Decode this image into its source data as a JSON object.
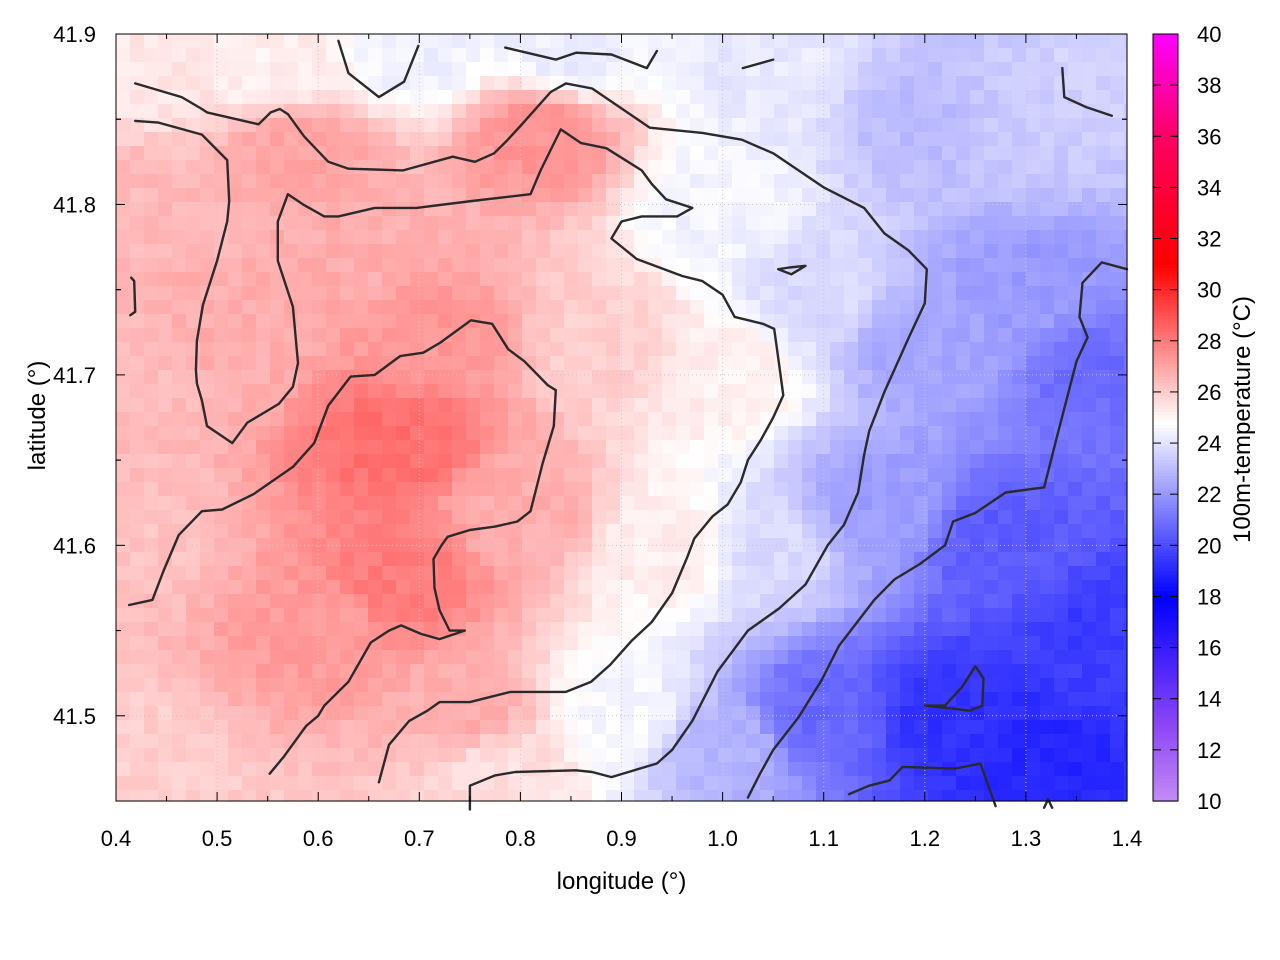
{
  "chart_data": {
    "type": "heatmap",
    "title": "",
    "xlabel": "longitude (°)",
    "ylabel": "latitude (°)",
    "xlim": [
      0.4,
      1.4
    ],
    "ylim": [
      41.45,
      41.9
    ],
    "x_ticks": [
      0.4,
      0.5,
      0.6,
      0.7,
      0.8,
      0.9,
      1.0,
      1.1,
      1.2,
      1.3,
      1.4
    ],
    "x_tick_labels": [
      "0.4",
      "0.5",
      "0.6",
      "0.7",
      "0.8",
      "0.9",
      "1.0",
      "1.1",
      "1.2",
      "1.3",
      "1.4"
    ],
    "y_ticks": [
      41.5,
      41.6,
      41.7,
      41.8,
      41.9
    ],
    "y_tick_labels": [
      "41.5",
      "41.6",
      "41.7",
      "41.8",
      "41.9"
    ],
    "grid": true,
    "colorbar": {
      "label": "100m-temperature (°C)",
      "range": [
        10,
        40
      ],
      "ticks": [
        10,
        12,
        14,
        16,
        18,
        20,
        22,
        24,
        26,
        28,
        30,
        32,
        34,
        36,
        38,
        40
      ],
      "tick_labels": [
        "10",
        "12",
        "14",
        "16",
        "18",
        "20",
        "22",
        "24",
        "26",
        "28",
        "30",
        "32",
        "34",
        "36",
        "38",
        "40"
      ],
      "palette": [
        {
          "value": 10,
          "color": "#c38cf5"
        },
        {
          "value": 13,
          "color": "#8c46f5"
        },
        {
          "value": 18,
          "color": "#0000ff"
        },
        {
          "value": 24.8,
          "color": "#ffffff"
        },
        {
          "value": 31,
          "color": "#ff0000"
        },
        {
          "value": 36,
          "color": "#ff0064"
        },
        {
          "value": 40,
          "color": "#ff00ff"
        }
      ]
    },
    "field_anchors": [
      {
        "lon": 0.42,
        "lat": 41.88,
        "temp": 25.4
      },
      {
        "lon": 0.42,
        "lat": 41.8,
        "temp": 26.5
      },
      {
        "lon": 0.42,
        "lat": 41.7,
        "temp": 26.4
      },
      {
        "lon": 0.42,
        "lat": 41.6,
        "temp": 26.3
      },
      {
        "lon": 0.42,
        "lat": 41.47,
        "temp": 26.0
      },
      {
        "lon": 0.5,
        "lat": 41.72,
        "temp": 26.8
      },
      {
        "lon": 0.55,
        "lat": 41.88,
        "temp": 25.2
      },
      {
        "lon": 0.58,
        "lat": 41.83,
        "temp": 27.0
      },
      {
        "lon": 0.6,
        "lat": 41.55,
        "temp": 27.2
      },
      {
        "lon": 0.63,
        "lat": 41.78,
        "temp": 26.8
      },
      {
        "lon": 0.68,
        "lat": 41.66,
        "temp": 28.3
      },
      {
        "lon": 0.68,
        "lat": 41.58,
        "temp": 28.0
      },
      {
        "lon": 0.72,
        "lat": 41.72,
        "temp": 27.3
      },
      {
        "lon": 0.7,
        "lat": 41.89,
        "temp": 24.4
      },
      {
        "lon": 0.75,
        "lat": 41.5,
        "temp": 26.8
      },
      {
        "lon": 0.8,
        "lat": 41.62,
        "temp": 26.8
      },
      {
        "lon": 0.82,
        "lat": 41.84,
        "temp": 27.4
      },
      {
        "lon": 0.78,
        "lat": 41.47,
        "temp": 25.6
      },
      {
        "lon": 0.88,
        "lat": 41.72,
        "temp": 26.0
      },
      {
        "lon": 0.85,
        "lat": 41.89,
        "temp": 24.3
      },
      {
        "lon": 0.9,
        "lat": 41.5,
        "temp": 24.6
      },
      {
        "lon": 0.95,
        "lat": 41.6,
        "temp": 25.2
      },
      {
        "lon": 1.0,
        "lat": 41.8,
        "temp": 24.5
      },
      {
        "lon": 1.0,
        "lat": 41.7,
        "temp": 25.2
      },
      {
        "lon": 1.0,
        "lat": 41.48,
        "temp": 22.8
      },
      {
        "lon": 1.05,
        "lat": 41.6,
        "temp": 23.8
      },
      {
        "lon": 1.05,
        "lat": 41.88,
        "temp": 24.2
      },
      {
        "lon": 1.1,
        "lat": 41.75,
        "temp": 23.8
      },
      {
        "lon": 1.1,
        "lat": 41.5,
        "temp": 20.8
      },
      {
        "lon": 1.15,
        "lat": 41.62,
        "temp": 22.2
      },
      {
        "lon": 1.2,
        "lat": 41.85,
        "temp": 23.0
      },
      {
        "lon": 1.2,
        "lat": 41.72,
        "temp": 22.4
      },
      {
        "lon": 1.22,
        "lat": 41.5,
        "temp": 19.3
      },
      {
        "lon": 1.28,
        "lat": 41.6,
        "temp": 20.4
      },
      {
        "lon": 1.3,
        "lat": 41.85,
        "temp": 23.4
      },
      {
        "lon": 1.3,
        "lat": 41.75,
        "temp": 22.1
      },
      {
        "lon": 1.3,
        "lat": 41.47,
        "temp": 19.0
      },
      {
        "lon": 1.38,
        "lat": 41.7,
        "temp": 20.9
      },
      {
        "lon": 1.38,
        "lat": 41.55,
        "temp": 19.6
      },
      {
        "lon": 1.38,
        "lat": 41.88,
        "temp": 23.6
      }
    ],
    "contours": [
      [
        [
          0.419,
          41.871
        ],
        [
          0.465,
          41.863
        ],
        [
          0.485,
          41.856
        ],
        [
          0.49,
          41.854
        ],
        [
          0.541,
          41.847
        ],
        [
          0.553,
          41.854
        ],
        [
          0.562,
          41.856
        ],
        [
          0.57,
          41.853
        ],
        [
          0.586,
          41.84
        ],
        [
          0.61,
          41.825
        ],
        [
          0.63,
          41.821
        ],
        [
          0.684,
          41.82
        ],
        [
          0.733,
          41.828
        ],
        [
          0.755,
          41.825
        ],
        [
          0.774,
          41.83
        ],
        [
          0.786,
          41.837
        ],
        [
          0.8,
          41.846
        ],
        [
          0.83,
          41.866
        ],
        [
          0.845,
          41.871
        ],
        [
          0.871,
          41.868
        ],
        [
          0.928,
          41.845
        ],
        [
          0.98,
          41.842
        ],
        [
          1.019,
          41.838
        ],
        [
          1.05,
          41.83
        ],
        [
          1.1,
          41.81
        ],
        [
          1.14,
          41.798
        ],
        [
          1.16,
          41.783
        ],
        [
          1.184,
          41.773
        ],
        [
          1.202,
          41.762
        ],
        [
          1.2,
          41.742
        ],
        [
          1.185,
          41.723
        ],
        [
          1.16,
          41.69
        ],
        [
          1.145,
          41.667
        ],
        [
          1.14,
          41.653
        ],
        [
          1.134,
          41.631
        ],
        [
          1.12,
          41.612
        ],
        [
          1.104,
          41.6
        ],
        [
          1.082,
          41.577
        ],
        [
          1.056,
          41.563
        ],
        [
          1.025,
          41.55
        ],
        [
          0.995,
          41.526
        ],
        [
          0.97,
          41.497
        ],
        [
          0.95,
          41.48
        ],
        [
          0.935,
          41.472
        ],
        [
          0.89,
          41.464
        ],
        [
          0.871,
          41.467
        ],
        [
          0.855,
          41.468
        ],
        [
          0.795,
          41.467
        ],
        [
          0.775,
          41.465
        ],
        [
          0.75,
          41.459
        ],
        [
          0.75,
          41.445
        ]
      ],
      [
        [
          0.419,
          41.849
        ],
        [
          0.442,
          41.848
        ],
        [
          0.485,
          41.841
        ],
        [
          0.51,
          41.826
        ],
        [
          0.512,
          41.802
        ],
        [
          0.51,
          41.79
        ],
        [
          0.5,
          41.767
        ],
        [
          0.486,
          41.741
        ],
        [
          0.48,
          41.72
        ],
        [
          0.479,
          41.703
        ],
        [
          0.48,
          41.695
        ],
        [
          0.485,
          41.685
        ],
        [
          0.49,
          41.67
        ],
        [
          0.505,
          41.664
        ],
        [
          0.515,
          41.66
        ],
        [
          0.53,
          41.672
        ],
        [
          0.561,
          41.683
        ],
        [
          0.575,
          41.693
        ],
        [
          0.58,
          41.707
        ],
        [
          0.575,
          41.74
        ],
        [
          0.56,
          41.767
        ],
        [
          0.56,
          41.79
        ],
        [
          0.57,
          41.806
        ],
        [
          0.585,
          41.8
        ],
        [
          0.606,
          41.793
        ],
        [
          0.62,
          41.793
        ],
        [
          0.656,
          41.798
        ],
        [
          0.697,
          41.798
        ],
        [
          0.752,
          41.802
        ],
        [
          0.81,
          41.806
        ],
        [
          0.82,
          41.82
        ],
        [
          0.84,
          41.844
        ],
        [
          0.86,
          41.836
        ],
        [
          0.885,
          41.833
        ],
        [
          0.92,
          41.82
        ],
        [
          0.93,
          41.812
        ],
        [
          0.944,
          41.803
        ],
        [
          0.97,
          41.798
        ],
        [
          0.955,
          41.793
        ],
        [
          0.92,
          41.793
        ],
        [
          0.9,
          41.79
        ],
        [
          0.89,
          41.78
        ],
        [
          0.915,
          41.768
        ],
        [
          0.96,
          41.758
        ],
        [
          0.98,
          41.755
        ],
        [
          1.0,
          41.747
        ],
        [
          1.012,
          41.734
        ],
        [
          1.04,
          41.73
        ],
        [
          1.051,
          41.727
        ],
        [
          1.055,
          41.71
        ],
        [
          1.06,
          41.688
        ],
        [
          1.05,
          41.675
        ],
        [
          1.038,
          41.662
        ],
        [
          1.025,
          41.65
        ],
        [
          1.018,
          41.637
        ],
        [
          1.005,
          41.624
        ],
        [
          0.99,
          41.617
        ],
        [
          0.972,
          41.604
        ],
        [
          0.965,
          41.593
        ],
        [
          0.95,
          41.572
        ],
        [
          0.93,
          41.555
        ],
        [
          0.91,
          41.544
        ],
        [
          0.889,
          41.53
        ],
        [
          0.87,
          41.52
        ],
        [
          0.845,
          41.514
        ],
        [
          0.79,
          41.514
        ],
        [
          0.75,
          41.508
        ],
        [
          0.72,
          41.508
        ],
        [
          0.708,
          41.503
        ],
        [
          0.69,
          41.497
        ],
        [
          0.67,
          41.483
        ],
        [
          0.66,
          41.461
        ]
      ],
      [
        [
          0.413,
          41.565
        ],
        [
          0.436,
          41.568
        ],
        [
          0.447,
          41.585
        ],
        [
          0.462,
          41.606
        ],
        [
          0.485,
          41.62
        ],
        [
          0.505,
          41.621
        ],
        [
          0.536,
          41.63
        ],
        [
          0.575,
          41.646
        ],
        [
          0.596,
          41.66
        ],
        [
          0.61,
          41.682
        ],
        [
          0.632,
          41.699
        ],
        [
          0.656,
          41.7
        ],
        [
          0.681,
          41.711
        ],
        [
          0.704,
          41.713
        ],
        [
          0.721,
          41.719
        ],
        [
          0.751,
          41.732
        ],
        [
          0.772,
          41.73
        ],
        [
          0.788,
          41.715
        ],
        [
          0.804,
          41.708
        ],
        [
          0.827,
          41.694
        ],
        [
          0.835,
          41.691
        ],
        [
          0.833,
          41.67
        ],
        [
          0.822,
          41.648
        ],
        [
          0.81,
          41.62
        ],
        [
          0.797,
          41.614
        ],
        [
          0.775,
          41.611
        ],
        [
          0.75,
          41.609
        ],
        [
          0.728,
          41.605
        ],
        [
          0.722,
          41.6
        ],
        [
          0.714,
          41.592
        ],
        [
          0.715,
          41.575
        ],
        [
          0.72,
          41.562
        ],
        [
          0.73,
          41.55
        ],
        [
          0.745,
          41.55
        ],
        [
          0.72,
          41.545
        ],
        [
          0.702,
          41.548
        ],
        [
          0.682,
          41.553
        ],
        [
          0.67,
          41.55
        ],
        [
          0.652,
          41.543
        ],
        [
          0.63,
          41.52
        ],
        [
          0.606,
          41.506
        ],
        [
          0.6,
          41.5
        ],
        [
          0.588,
          41.494
        ],
        [
          0.566,
          41.476
        ],
        [
          0.552,
          41.466
        ]
      ],
      [
        [
          0.415,
          41.757
        ],
        [
          0.418,
          41.755
        ],
        [
          0.419,
          41.737
        ],
        [
          0.414,
          41.735
        ]
      ],
      [
        [
          0.62,
          41.896
        ],
        [
          0.63,
          41.877
        ],
        [
          0.66,
          41.863
        ],
        [
          0.685,
          41.872
        ],
        [
          0.699,
          41.893
        ]
      ],
      [
        [
          0.785,
          41.892
        ],
        [
          0.835,
          41.885
        ],
        [
          0.855,
          41.889
        ],
        [
          0.89,
          41.888
        ],
        [
          0.925,
          41.88
        ],
        [
          0.93,
          41.885
        ],
        [
          0.935,
          41.89
        ]
      ],
      [
        [
          1.02,
          41.88
        ],
        [
          1.05,
          41.885
        ]
      ],
      [
        [
          1.055,
          41.762
        ],
        [
          1.066,
          41.763
        ],
        [
          1.082,
          41.764
        ],
        [
          1.068,
          41.759
        ],
        [
          1.055,
          41.762
        ]
      ],
      [
        [
          1.336,
          41.88
        ],
        [
          1.338,
          41.863
        ],
        [
          1.36,
          41.857
        ],
        [
          1.385,
          41.852
        ]
      ],
      [
        [
          1.025,
          41.452
        ],
        [
          1.037,
          41.466
        ],
        [
          1.05,
          41.48
        ],
        [
          1.075,
          41.499
        ],
        [
          1.098,
          41.521
        ],
        [
          1.115,
          41.541
        ],
        [
          1.15,
          41.568
        ],
        [
          1.17,
          41.58
        ],
        [
          1.195,
          41.589
        ],
        [
          1.22,
          41.6
        ],
        [
          1.228,
          41.614
        ],
        [
          1.25,
          41.619
        ],
        [
          1.28,
          41.631
        ],
        [
          1.305,
          41.633
        ],
        [
          1.318,
          41.634
        ],
        [
          1.33,
          41.662
        ],
        [
          1.35,
          41.708
        ],
        [
          1.361,
          41.722
        ],
        [
          1.353,
          41.734
        ],
        [
          1.356,
          41.754
        ],
        [
          1.375,
          41.766
        ],
        [
          1.4,
          41.762
        ]
      ],
      [
        [
          1.125,
          41.454
        ],
        [
          1.145,
          41.459
        ],
        [
          1.165,
          41.462
        ],
        [
          1.178,
          41.47
        ],
        [
          1.23,
          41.469
        ],
        [
          1.255,
          41.472
        ],
        [
          1.27,
          41.447
        ]
      ],
      [
        [
          1.2,
          41.506
        ],
        [
          1.22,
          41.506
        ],
        [
          1.237,
          41.517
        ],
        [
          1.25,
          41.529
        ],
        [
          1.258,
          41.522
        ],
        [
          1.257,
          41.506
        ],
        [
          1.245,
          41.503
        ],
        [
          1.2,
          41.506
        ]
      ],
      [
        [
          1.318,
          41.446
        ],
        [
          1.322,
          41.451
        ],
        [
          1.326,
          41.446
        ]
      ]
    ]
  }
}
